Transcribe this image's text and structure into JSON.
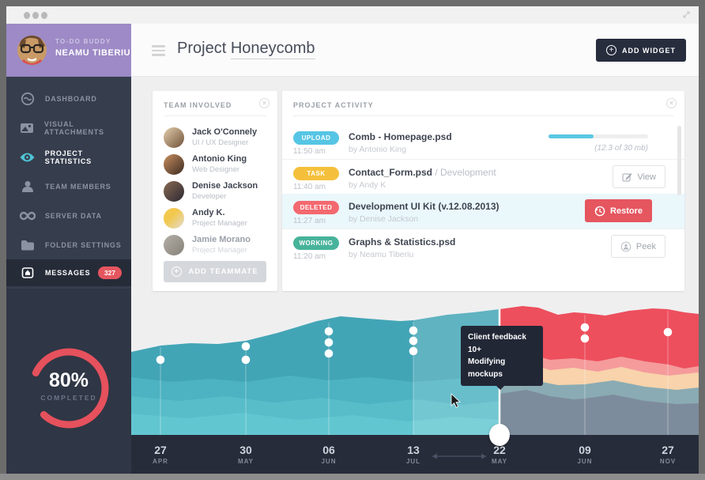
{
  "user_card": {
    "greeting": "TO-DO BUDDY",
    "name": "NEAMU TIBERIU"
  },
  "sidebar": {
    "items": [
      {
        "label": "DASHBOARD"
      },
      {
        "label": "VISUAL ATTACHMENTS"
      },
      {
        "label": "PROJECT STATISTICS",
        "active": true
      },
      {
        "label": "TEAM MEMBERS"
      },
      {
        "label": "SERVER DATA"
      },
      {
        "label": "FOLDER SETTINGS"
      },
      {
        "label": "MESSAGES",
        "badge": "327"
      }
    ],
    "progress": {
      "percent": "80%",
      "caption": "COMPLETED"
    }
  },
  "header": {
    "title_prefix": "Project ",
    "title_name": "Honeycomb",
    "add_widget": "ADD WIDGET"
  },
  "team_panel": {
    "title": "TEAM INVOLVED",
    "members": [
      {
        "name": "Jack O'Connely",
        "role": "UI / UX Designer"
      },
      {
        "name": "Antonio King",
        "role": "Web Designer"
      },
      {
        "name": "Denise Jackson",
        "role": "Developer"
      },
      {
        "name": "Andy K.",
        "role": "Project Manager"
      },
      {
        "name": "Jamie Morano",
        "role": "Project Manager",
        "faded": true
      }
    ],
    "add_button": "ADD TEAMMATE"
  },
  "activity_panel": {
    "title": "PROJECT ACTIVITY",
    "rows": [
      {
        "badge": "UPLOAD",
        "badge_color": "#56c5e4",
        "time": "11:50 am",
        "title": "Comb - Homepage.psd",
        "by": "by Antonio King",
        "progress_percent": 45,
        "progress_note": "(12.3 of 30 mb)"
      },
      {
        "badge": "TASK",
        "badge_color": "#f4c03c",
        "time": "11:40 am",
        "title": "Contact_Form.psd ",
        "title_suffix": "/ Development",
        "by": "by Andy K",
        "button": "View"
      },
      {
        "badge": "DELETED",
        "badge_color": "#f3696f",
        "time": "11:27 am",
        "title": "Development UI Kit (v.12.08.2013)",
        "by": "by Denise Jackson",
        "button": "Restore",
        "highlighted": true
      },
      {
        "badge": "WORKING",
        "badge_color": "#47b39b",
        "time": "11:20 am",
        "title": "Graphs & Statistics.psd",
        "by": "by Neamu Tiberiu",
        "button": "Peek"
      }
    ]
  },
  "chart_data": {
    "type": "area",
    "subtype": "stacked-area timeline with draggable split handle",
    "timeline": [
      {
        "day": "27",
        "month": "APR",
        "event_dots": 1
      },
      {
        "day": "30",
        "month": "MAY",
        "event_dots": 2
      },
      {
        "day": "06",
        "month": "JUN",
        "event_dots": 3
      },
      {
        "day": "13",
        "month": "JUL",
        "event_dots": 3
      },
      {
        "day": "22",
        "month": "MAY",
        "event_dots": 0,
        "selected": true
      },
      {
        "day": "09",
        "month": "JUN",
        "event_dots": 2
      },
      {
        "day": "27",
        "month": "NOV",
        "event_dots": 1
      }
    ],
    "split_at_label": "22 MAY",
    "highlight_range": [
      "13 JUL",
      "22 MAY"
    ],
    "left_stack_colors": [
      "#42a5b6",
      "#4db2c1",
      "#58bdc9",
      "#62c6d0"
    ],
    "right_stack_colors": [
      "#ed4f5d",
      "#f59b9c",
      "#f8d3ab",
      "#8aabb3",
      "#7d8c9c"
    ],
    "tooltip": {
      "line1": "Client feedback 10+",
      "line2": "Modifying mockups"
    }
  },
  "colors": {
    "accent_red": "#e5565f",
    "accent_teal": "#4fc3d4",
    "purple": "#9d8ac6",
    "navy": "#272d3d"
  }
}
